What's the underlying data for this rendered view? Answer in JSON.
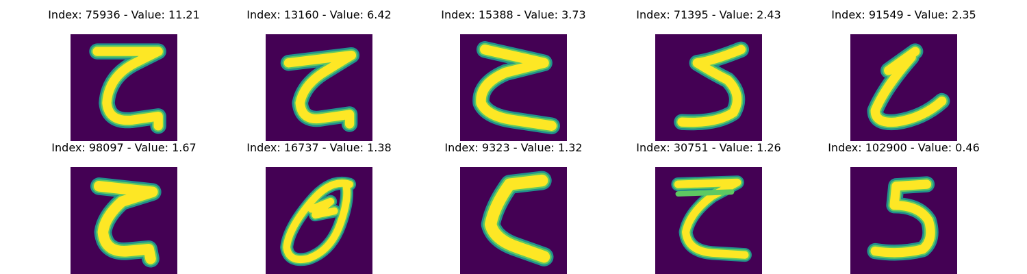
{
  "panels": [
    {
      "title": "Index: 75936 - Value: 11.21",
      "glyph": "z-form"
    },
    {
      "title": "Index: 13160 - Value: 6.42",
      "glyph": "z-form"
    },
    {
      "title": "Index: 15388 - Value: 3.73",
      "glyph": "z-form"
    },
    {
      "title": "Index: 71395 - Value: 2.43",
      "glyph": "five-form"
    },
    {
      "title": "Index: 91549 - Value: 2.35",
      "glyph": "z-form"
    },
    {
      "title": "Index: 98097 - Value: 1.67",
      "glyph": "z-form"
    },
    {
      "title": "Index: 16737 - Value: 1.38",
      "glyph": "theta-form"
    },
    {
      "title": "Index: 9323 - Value: 1.32",
      "glyph": "c-form"
    },
    {
      "title": "Index: 30751 - Value: 1.26",
      "glyph": "z-form"
    },
    {
      "title": "Index: 102900 - Value: 0.46",
      "glyph": "five-form"
    }
  ],
  "colors": {
    "background": "#440154",
    "stroke_core": "#fde725",
    "stroke_mid": "#5ec962",
    "stroke_edge": "#21918c"
  }
}
